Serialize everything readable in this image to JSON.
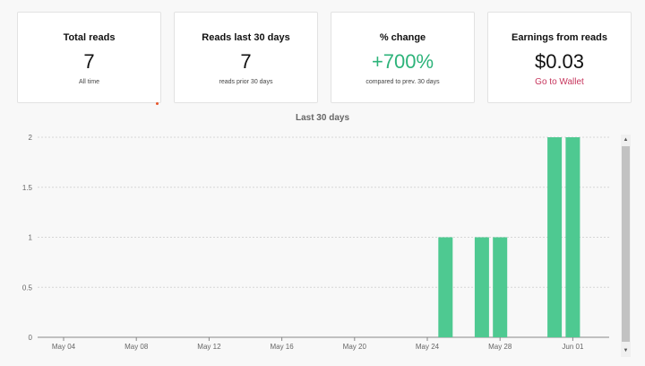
{
  "cards": [
    {
      "title": "Total reads",
      "value": "7",
      "sub": "All time"
    },
    {
      "title": "Reads last 30 days",
      "value": "7",
      "sub": "reads prior 30 days"
    },
    {
      "title": "% change",
      "value": "+700%",
      "sub": "compared to prev. 30 days"
    },
    {
      "title": "Earnings from reads",
      "value": "$0.03",
      "link": "Go to Wallet"
    }
  ],
  "colors": {
    "positive": "#2db37a",
    "bar": "#4ec991",
    "link": "#c7375e"
  },
  "scrollbar": {
    "up_icon": "triangle-up-icon",
    "down_icon": "triangle-down-icon"
  },
  "chart_data": {
    "type": "bar",
    "title": "Last 30 days",
    "xlabel": "",
    "ylabel": "",
    "ylim": [
      0,
      2
    ],
    "yticks": [
      "0",
      "0.5",
      "1",
      "1.5",
      "2"
    ],
    "xticks": [
      "May 04",
      "May 08",
      "May 12",
      "May 16",
      "May 20",
      "May 24",
      "May 28",
      "Jun 01"
    ],
    "grid": true,
    "bars": [
      {
        "date": "May 25",
        "value": 1
      },
      {
        "date": "May 27",
        "value": 1
      },
      {
        "date": "May 28",
        "value": 1
      },
      {
        "date": "May 31",
        "value": 2
      },
      {
        "date": "Jun 01",
        "value": 2
      }
    ]
  }
}
